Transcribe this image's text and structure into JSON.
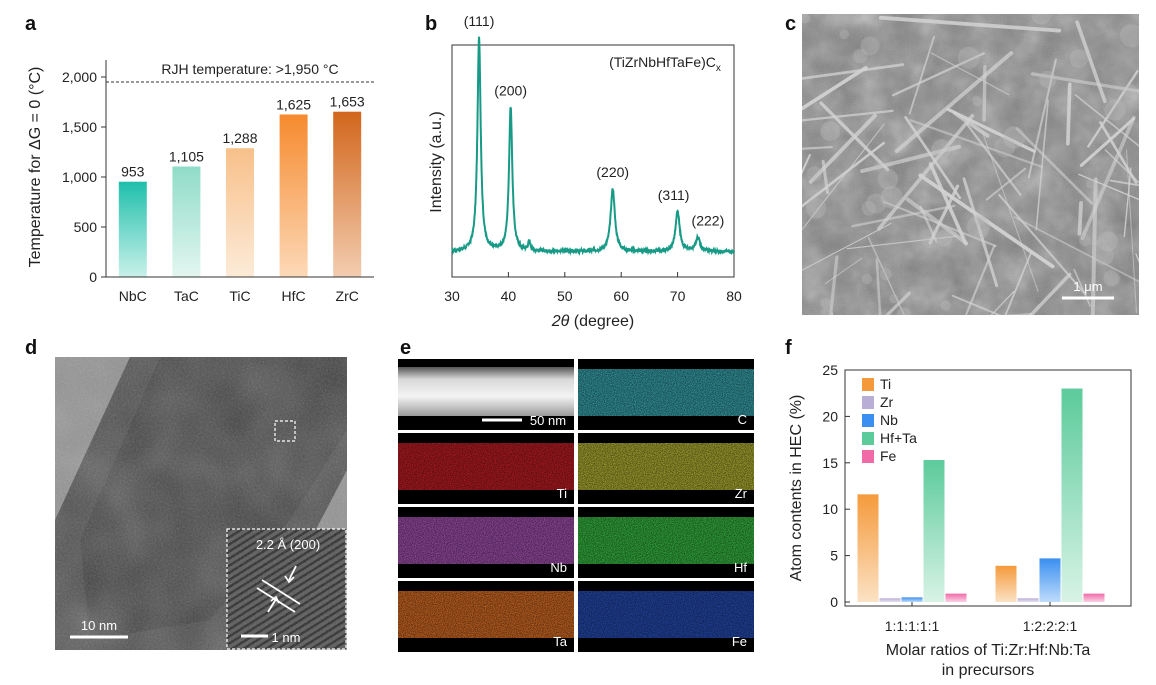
{
  "panel_labels": [
    "a",
    "b",
    "c",
    "d",
    "e",
    "f"
  ],
  "colors": {
    "NbC": "#1fbfab",
    "TaC": "#8fdcc8",
    "TiC": "#f8c08a",
    "HfC": "#f68a2e",
    "ZrC": "#d2661c",
    "xrd_line": "#179a86",
    "Ti": "#f59a3c",
    "Zr": "#b9aed6",
    "Nb": "#3a8ff0",
    "HfTa": "#5ccb9b",
    "Fe": "#f06aa8"
  },
  "chart_data": [
    {
      "id": "a",
      "type": "bar",
      "ylabel": "Temperature for ΔG = 0 (°C)",
      "categories": [
        "NbC",
        "TaC",
        "TiC",
        "HfC",
        "ZrC"
      ],
      "values": [
        953,
        1105,
        1288,
        1625,
        1653
      ],
      "data_labels": [
        "953",
        "1,105",
        "1,288",
        "1,625",
        "1,653"
      ],
      "yticks": [
        0,
        500,
        1000,
        1500,
        2000
      ],
      "ytick_labels": [
        "0",
        "500",
        "1,000",
        "1,500",
        "2,000"
      ],
      "ylim": [
        0,
        2250
      ],
      "reference_line": {
        "value": 1950,
        "label": "RJH temperature: >1,950 °C"
      }
    },
    {
      "id": "b",
      "type": "line",
      "title_main": "(TiZrNbHfTaFe)C",
      "title_sub": "x",
      "xlabel_italic": "2θ",
      "xlabel_rest": " (degree)",
      "ylabel": "Intensity (a.u.)",
      "xlim": [
        30,
        80
      ],
      "xticks": [
        30,
        40,
        50,
        60,
        70,
        80
      ],
      "baseline": 0.11,
      "peaks": [
        {
          "x": 34.8,
          "height": 0.92,
          "width": 0.35,
          "label": "(111)"
        },
        {
          "x": 40.4,
          "height": 0.62,
          "width": 0.35,
          "label": "(200)"
        },
        {
          "x": 43.7,
          "height": 0.04,
          "width": 0.25,
          "label": ""
        },
        {
          "x": 58.5,
          "height": 0.27,
          "width": 0.45,
          "label": "(220)"
        },
        {
          "x": 70.0,
          "height": 0.17,
          "width": 0.45,
          "label": "(311)"
        },
        {
          "x": 73.6,
          "height": 0.06,
          "width": 0.45,
          "label": "(222)"
        }
      ]
    },
    {
      "id": "f",
      "type": "bar",
      "ylabel": "Atom contents in HEC (%)",
      "xlabel": [
        "Molar ratios of Ti:Zr:Hf:Nb:Ta",
        "in precursors"
      ],
      "categories": [
        "1:1:1:1:1",
        "1:2:2:2:1"
      ],
      "ylim": [
        0,
        25
      ],
      "yticks": [
        0,
        5,
        10,
        15,
        20,
        25
      ],
      "series": [
        {
          "name": "Ti",
          "values": [
            11.6,
            3.9
          ]
        },
        {
          "name": "Zr",
          "values": [
            0.4,
            0.4
          ]
        },
        {
          "name": "Nb",
          "values": [
            0.5,
            4.7
          ]
        },
        {
          "name": "Hf+Ta",
          "values": [
            15.3,
            23.0
          ]
        },
        {
          "name": "Fe",
          "values": [
            0.9,
            0.9
          ]
        }
      ]
    }
  ],
  "images": {
    "c": {
      "scalebar": "1 μm"
    },
    "d": {
      "scalebar": "10 nm",
      "inset_scalebar": "1 nm",
      "inset_label": "2.2 Å (200)"
    },
    "e": {
      "scalebar": "50 nm",
      "maps": [
        {
          "label": "",
          "color": "#ffffff"
        },
        {
          "label": "C",
          "color": "#3fb8c2"
        },
        {
          "label": "Ti",
          "color": "#d8222a"
        },
        {
          "label": "Zr",
          "color": "#c8c63a"
        },
        {
          "label": "Nb",
          "color": "#b65ac4"
        },
        {
          "label": "Hf",
          "color": "#3ed04a"
        },
        {
          "label": "Ta",
          "color": "#f07a2a"
        },
        {
          "label": "Fe",
          "color": "#2a56c8"
        }
      ]
    }
  }
}
